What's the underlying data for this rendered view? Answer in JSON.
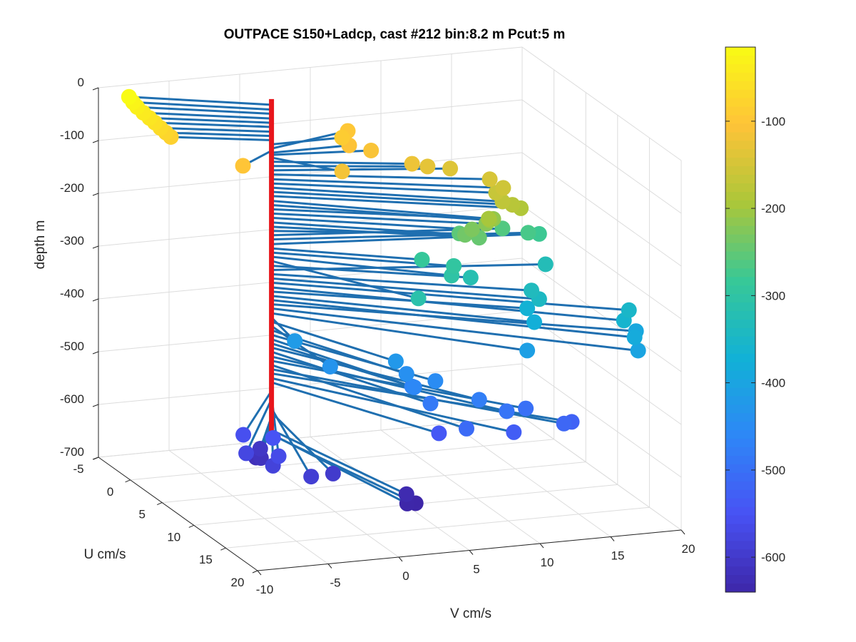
{
  "chart_data": {
    "type": "scatter",
    "title": "OUTPACE S150+Ladcp, cast #212 bin:8.2 m  Pcut:5 m",
    "xlabel": "V cm/s",
    "ylabel": "U cm/s",
    "zlabel": "depth m",
    "xlim": [
      -10,
      20
    ],
    "ylim": [
      -5,
      20
    ],
    "zlim": [
      -700,
      0
    ],
    "x_ticks": [
      "-10",
      "-5",
      "0",
      "5",
      "10",
      "15",
      "20"
    ],
    "y_ticks": [
      "-5",
      "0",
      "5",
      "10",
      "15",
      "20"
    ],
    "z_ticks": [
      "0",
      "-100",
      "-200",
      "-300",
      "-400",
      "-500",
      "-600",
      "-700"
    ],
    "colorbar": {
      "clim": [
        -640,
        -15
      ],
      "ticks": [
        "-100",
        "-200",
        "-300",
        "-400",
        "-500",
        "-600"
      ],
      "colormap": "parula"
    },
    "grid": true,
    "stem_color": "#1f6fb0",
    "profile_color": "#e8161c",
    "series": [
      {
        "points": [
          {
            "depth": -15,
            "U": -4.2,
            "V": -8.2
          },
          {
            "depth": -24,
            "U": -4.0,
            "V": -8.0
          },
          {
            "depth": -32,
            "U": -3.8,
            "V": -7.8
          },
          {
            "depth": -41,
            "U": -3.5,
            "V": -7.5
          },
          {
            "depth": -49,
            "U": -3.2,
            "V": -7.2
          },
          {
            "depth": -57,
            "U": -3.0,
            "V": -6.9
          },
          {
            "depth": -66,
            "U": -2.8,
            "V": -6.6
          },
          {
            "depth": -74,
            "U": -2.6,
            "V": -6.3
          },
          {
            "depth": -82,
            "U": -2.5,
            "V": -6.0
          },
          {
            "depth": -90,
            "U": 0.0,
            "V": 5.0
          },
          {
            "depth": -98,
            "U": -2.0,
            "V": 6.3
          },
          {
            "depth": -102,
            "U": 2.4,
            "V": -3.1
          },
          {
            "depth": -106,
            "U": 0.0,
            "V": 5.5
          },
          {
            "depth": -110,
            "U": 1.0,
            "V": 6.6
          },
          {
            "depth": -115,
            "U": 4.0,
            "V": 3.2
          },
          {
            "depth": -123,
            "U": 3.0,
            "V": 8.6
          },
          {
            "depth": -131,
            "U": 3.0,
            "V": 9.7
          },
          {
            "depth": -139,
            "U": 3.0,
            "V": 11.3
          },
          {
            "depth": -147,
            "U": 5.0,
            "V": 13.2
          },
          {
            "depth": -156,
            "U": 6.0,
            "V": 13.7
          },
          {
            "depth": -164,
            "U": 6.0,
            "V": 13.2
          },
          {
            "depth": -172,
            "U": 7.0,
            "V": 13.2
          },
          {
            "depth": -180,
            "U": 7.0,
            "V": 13.9
          },
          {
            "depth": -188,
            "U": 7.0,
            "V": 14.5
          },
          {
            "depth": -197,
            "U": 7.5,
            "V": 12.0
          },
          {
            "depth": -205,
            "U": 7.0,
            "V": 12.3
          },
          {
            "depth": -213,
            "U": 6.0,
            "V": 13.0
          },
          {
            "depth": -221,
            "U": 6.0,
            "V": 12.5
          },
          {
            "depth": -229,
            "U": 6.0,
            "V": 11.5
          },
          {
            "depth": -238,
            "U": 6.0,
            "V": 11.0
          },
          {
            "depth": -246,
            "U": 6.0,
            "V": 12.0
          },
          {
            "depth": -254,
            "U": 4.0,
            "V": 11.5
          },
          {
            "depth": -262,
            "U": 3.0,
            "V": 15.0
          },
          {
            "depth": -270,
            "U": 3.5,
            "V": 16.6
          },
          {
            "depth": -279,
            "U": 3.0,
            "V": 17.6
          },
          {
            "depth": -287,
            "U": 5.0,
            "V": 8.4
          },
          {
            "depth": -295,
            "U": 6.0,
            "V": 10.2
          },
          {
            "depth": -303,
            "U": 7.0,
            "V": 9.6
          },
          {
            "depth": -311,
            "U": 10.0,
            "V": 5.9
          },
          {
            "depth": -320,
            "U": 6.0,
            "V": 11.4
          },
          {
            "depth": -328,
            "U": 4.0,
            "V": 17.6
          },
          {
            "depth": -336,
            "U": 8.0,
            "V": 14.8
          },
          {
            "depth": -344,
            "U": 9.0,
            "V": 14.9
          },
          {
            "depth": -352,
            "U": 12.0,
            "V": 19.9
          },
          {
            "depth": -361,
            "U": 13.0,
            "V": 19.1
          },
          {
            "depth": -369,
            "U": 8.0,
            "V": 14.5
          },
          {
            "depth": -377,
            "U": 10.0,
            "V": 14.1
          },
          {
            "depth": -385,
            "U": 14.0,
            "V": 19.4
          },
          {
            "depth": -393,
            "U": 12.0,
            "V": 20.4
          },
          {
            "depth": -401,
            "U": 15.0,
            "V": 19.2
          },
          {
            "depth": -410,
            "U": 12.0,
            "V": 12.7
          },
          {
            "depth": -418,
            "U": 5.0,
            "V": -0.6
          },
          {
            "depth": -426,
            "U": 10.0,
            "V": 4.3
          },
          {
            "depth": -434,
            "U": 9.0,
            "V": 0.1
          },
          {
            "depth": -442,
            "U": 11.0,
            "V": 4.6
          },
          {
            "depth": -451,
            "U": 12.0,
            "V": 6.2
          },
          {
            "depth": -459,
            "U": 12.0,
            "V": 4.7
          },
          {
            "depth": -467,
            "U": 11.0,
            "V": 5.0
          },
          {
            "depth": -475,
            "U": 14.0,
            "V": 8.4
          },
          {
            "depth": -483,
            "U": 13.0,
            "V": 5.4
          },
          {
            "depth": -492,
            "U": 15.0,
            "V": 9.9
          },
          {
            "depth": -500,
            "U": 14.0,
            "V": 11.7
          },
          {
            "depth": -508,
            "U": 16.0,
            "V": 6.6
          },
          {
            "depth": -516,
            "U": 16.0,
            "V": 13.5
          },
          {
            "depth": -524,
            "U": 15.0,
            "V": 14.5
          },
          {
            "depth": -533,
            "U": 15.0,
            "V": 10.4
          },
          {
            "depth": -541,
            "U": 13.0,
            "V": 6.0
          },
          {
            "depth": -549,
            "U": 10.0,
            "V": -4.4
          },
          {
            "depth": -557,
            "U": 8.0,
            "V": -5.6
          },
          {
            "depth": -565,
            "U": 12.0,
            "V": -4.9
          },
          {
            "depth": -573,
            "U": 10.0,
            "V": -6.3
          },
          {
            "depth": -582,
            "U": 12.0,
            "V": -5.3
          },
          {
            "depth": -590,
            "U": 14.0,
            "V": -3.5
          },
          {
            "depth": -598,
            "U": 13.0,
            "V": -1.5
          },
          {
            "depth": -606,
            "U": 6.0,
            "V": -3.5
          },
          {
            "depth": -614,
            "U": 7.0,
            "V": -3.9
          },
          {
            "depth": -622,
            "U": 6.0,
            "V": -3.8
          },
          {
            "depth": -631,
            "U": 15.0,
            "V": 2.8
          },
          {
            "depth": -639,
            "U": 16.0,
            "V": 2.4
          },
          {
            "depth": -640,
            "U": 16.0,
            "V": 3.0
          }
        ]
      }
    ]
  }
}
